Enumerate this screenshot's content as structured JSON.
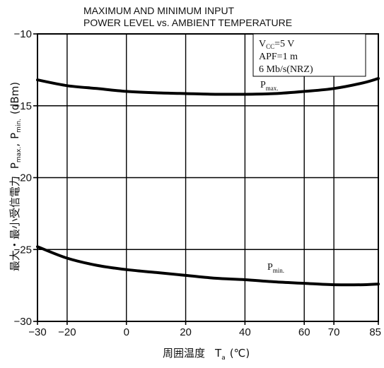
{
  "chart_data": {
    "type": "line",
    "title_lines": [
      "MAXIMUM AND MINIMUM INPUT",
      "POWER LEVEL vs. AMBIENT TEMPERATURE"
    ],
    "xlabel": "周囲温度",
    "xlabel_symbol": "T",
    "xlabel_symbol_sub": "a",
    "xlabel_unit": "(℃)",
    "ylabel": "最大・最小受信電力",
    "ylabel_symbols": {
      "pmax_main": "P",
      "pmax_sub": "max.",
      "separator": ",",
      "pmin_main": "P",
      "pmin_sub": "min.",
      "unit": "(dBm)"
    },
    "xlim": [
      -30,
      85
    ],
    "ylim": [
      -30,
      -10
    ],
    "x_ticks": [
      -30,
      -20,
      0,
      20,
      40,
      60,
      70,
      85
    ],
    "x_tick_labels": [
      "−30",
      "−20",
      "0",
      "20",
      "40",
      "60",
      "70",
      "85"
    ],
    "y_ticks": [
      -10,
      -15,
      -20,
      -25,
      -30
    ],
    "y_tick_labels": [
      "−10",
      "−15",
      "−20",
      "−25",
      "−30"
    ],
    "grid": true,
    "conditions": {
      "vcc_main": "V",
      "vcc_sub": "CC",
      "vcc_value": "=5 V",
      "apf": "APF=1 m",
      "rate": "6 Mb/s(NRZ)"
    },
    "series": [
      {
        "name": "P",
        "name_sub": "max.",
        "x": [
          -30,
          -20,
          -10,
          0,
          10,
          20,
          30,
          40,
          50,
          60,
          70,
          80,
          85
        ],
        "y": [
          -13.2,
          -13.6,
          -13.8,
          -14.0,
          -14.1,
          -14.15,
          -14.2,
          -14.2,
          -14.15,
          -14.0,
          -13.8,
          -13.4,
          -13.1
        ]
      },
      {
        "name": "P",
        "name_sub": "min.",
        "x": [
          -30,
          -20,
          -10,
          0,
          10,
          20,
          30,
          40,
          50,
          60,
          70,
          80,
          85
        ],
        "y": [
          -24.8,
          -25.6,
          -26.1,
          -26.4,
          -26.6,
          -26.8,
          -27.0,
          -27.1,
          -27.25,
          -27.35,
          -27.45,
          -27.45,
          -27.4
        ]
      }
    ]
  }
}
